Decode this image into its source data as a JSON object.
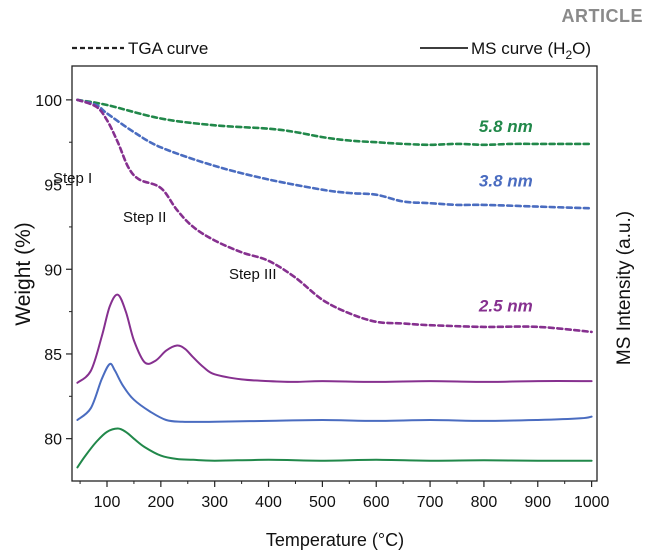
{
  "header": {
    "tag": "ARTICLE"
  },
  "chart_data": {
    "type": "line",
    "xlabel": "Temperature (°C)",
    "ylabel_left": "Weight (%)",
    "ylabel_right": "MS Intensity (a.u.)",
    "xlim": [
      35,
      1010
    ],
    "ylim": [
      77.5,
      102
    ],
    "x_ticks": [
      100,
      200,
      300,
      400,
      500,
      600,
      700,
      800,
      900,
      1000
    ],
    "y_ticks": [
      80,
      85,
      90,
      95,
      100
    ],
    "legend": {
      "tga_label": "TGA curve",
      "ms_label_main": "MS curve (H",
      "ms_label_sub": "2",
      "ms_label_end": "O)",
      "placement": "top"
    },
    "colors": {
      "green": "#21884a",
      "blue": "#4a6cc0",
      "purple": "#86308f"
    },
    "annotations": {
      "step1": "Step I",
      "step2": "Step II",
      "step3": "Step III"
    },
    "series": [
      {
        "name": "5.8 nm",
        "kind": "TGA",
        "color": "#21884a",
        "x": [
          45,
          100,
          200,
          300,
          400,
          450,
          500,
          550,
          600,
          650,
          700,
          750,
          800,
          850,
          900,
          950,
          1000
        ],
        "y": [
          100,
          99.7,
          98.9,
          98.5,
          98.3,
          98.1,
          97.8,
          97.6,
          97.5,
          97.4,
          97.35,
          97.4,
          97.35,
          97.4,
          97.4,
          97.4,
          97.4
        ]
      },
      {
        "name": "3.8 nm",
        "kind": "TGA",
        "color": "#4a6cc0",
        "x": [
          45,
          80,
          100,
          150,
          200,
          300,
          400,
          500,
          550,
          600,
          650,
          700,
          750,
          800,
          900,
          1000
        ],
        "y": [
          100,
          99.7,
          99.2,
          98.1,
          97.2,
          96.1,
          95.3,
          94.7,
          94.5,
          94.4,
          94.0,
          93.9,
          93.8,
          93.8,
          93.7,
          93.6
        ]
      },
      {
        "name": "2.5 nm",
        "kind": "TGA",
        "color": "#86308f",
        "x": [
          45,
          80,
          100,
          120,
          140,
          160,
          200,
          230,
          260,
          300,
          350,
          400,
          450,
          500,
          550,
          600,
          650,
          700,
          800,
          900,
          1000
        ],
        "y": [
          100,
          99.6,
          98.8,
          97.5,
          96.0,
          95.3,
          94.8,
          93.5,
          92.5,
          91.7,
          91.0,
          90.5,
          89.5,
          88.2,
          87.4,
          86.9,
          86.8,
          86.7,
          86.6,
          86.6,
          86.3
        ]
      },
      {
        "name": "2.5 nm",
        "kind": "MS",
        "color": "#86308f",
        "x": [
          45,
          70,
          90,
          105,
          120,
          135,
          150,
          170,
          190,
          210,
          230,
          245,
          260,
          280,
          300,
          350,
          400,
          450,
          500,
          600,
          700,
          800,
          900,
          1000
        ],
        "y": [
          83.3,
          84.0,
          86.0,
          87.8,
          88.5,
          87.5,
          85.8,
          84.5,
          84.6,
          85.2,
          85.5,
          85.3,
          84.8,
          84.2,
          83.8,
          83.5,
          83.4,
          83.35,
          83.4,
          83.35,
          83.4,
          83.35,
          83.4,
          83.4
        ]
      },
      {
        "name": "3.8 nm",
        "kind": "MS",
        "color": "#4a6cc0",
        "x": [
          45,
          70,
          90,
          105,
          115,
          130,
          150,
          180,
          210,
          240,
          300,
          400,
          500,
          600,
          700,
          800,
          900,
          980,
          1000
        ],
        "y": [
          81.1,
          81.8,
          83.5,
          84.4,
          84.0,
          83.1,
          82.3,
          81.6,
          81.1,
          81.0,
          81.0,
          81.05,
          81.1,
          81.05,
          81.1,
          81.05,
          81.1,
          81.2,
          81.3
        ]
      },
      {
        "name": "5.8 nm",
        "kind": "MS",
        "color": "#21884a",
        "x": [
          45,
          60,
          80,
          100,
          120,
          135,
          150,
          170,
          200,
          230,
          260,
          300,
          400,
          500,
          600,
          700,
          800,
          900,
          1000
        ],
        "y": [
          78.3,
          79.0,
          79.8,
          80.4,
          80.6,
          80.4,
          80.0,
          79.5,
          79.0,
          78.8,
          78.75,
          78.7,
          78.75,
          78.7,
          78.75,
          78.7,
          78.72,
          78.7,
          78.7
        ]
      }
    ],
    "series_labels": [
      {
        "text": "5.8 nm",
        "color": "#21884a",
        "x": 900,
        "y": 98.1
      },
      {
        "text": "3.8 nm",
        "color": "#4a6cc0",
        "x": 900,
        "y": 94.9
      },
      {
        "text": "2.5 nm",
        "color": "#86308f",
        "x": 900,
        "y": 87.5
      }
    ]
  }
}
